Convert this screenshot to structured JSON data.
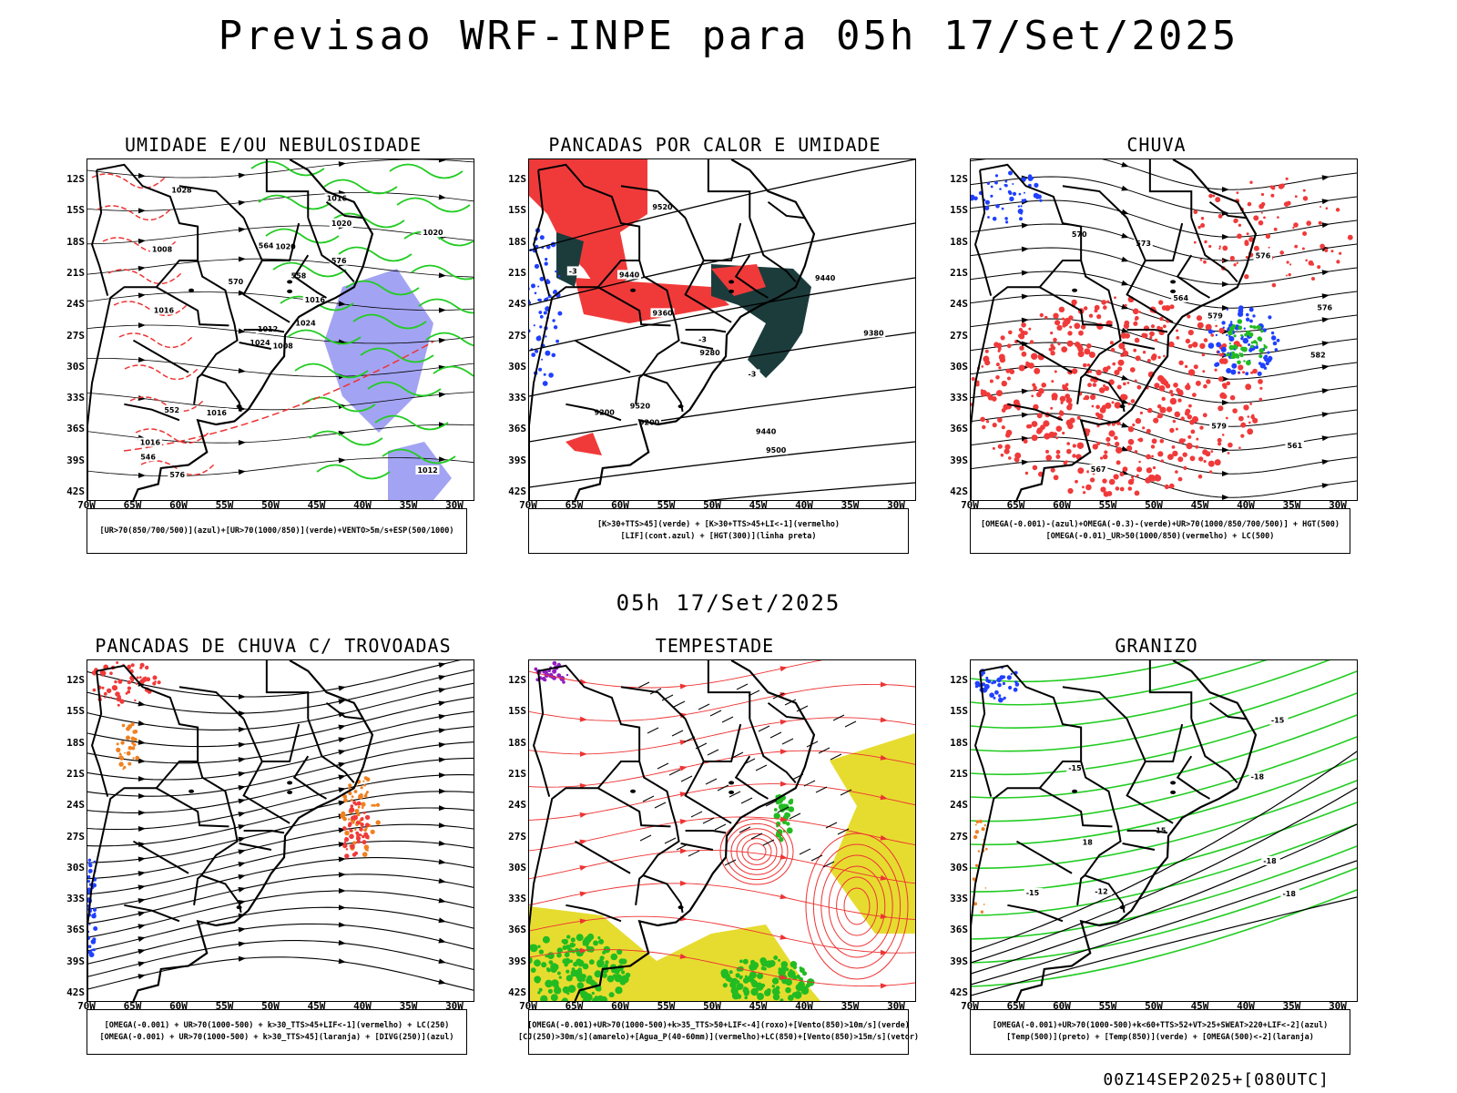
{
  "page": {
    "title": "Previsao WRF-INPE  para 05h 17/Set/2025",
    "mid_date": "05h 17/Set/2025",
    "footer": "00Z14SEP2025+[080UTC]"
  },
  "axes": {
    "lat_labels": [
      "12S",
      "15S",
      "18S",
      "21S",
      "24S",
      "27S",
      "30S",
      "33S",
      "36S",
      "39S",
      "42S"
    ],
    "lon_labels": [
      "70W",
      "65W",
      "60W",
      "55W",
      "50W",
      "45W",
      "40W",
      "35W",
      "30W"
    ]
  },
  "colors": {
    "blue_field": "#8c8cf0",
    "green_contour": "#22cc22",
    "red_contour": "#ee3333",
    "red_fill": "#f03a3a",
    "dark_teal": "#1c3c3c",
    "yellow_fill": "#e6dc30",
    "orange_fill": "#f08020",
    "blue_fill": "#2040ff",
    "purple_fill": "#9020c0",
    "green_fill": "#22bb22"
  },
  "panels": [
    {
      "id": "umidade",
      "title": "UMIDADE E/OU NEBULOSIDADE",
      "legend": [
        "[UR>70(850/700/500)](azul)+[UR>70(1000/850)](verde)+VENTO>5m/s+ESP(500/1000)"
      ],
      "contour_labels": [
        "1008",
        "1008",
        "1012",
        "1016",
        "1016",
        "1016",
        "1016",
        "1020",
        "1020",
        "1024",
        "1028",
        "1012",
        "1016",
        "1020",
        "1024",
        "576",
        "576",
        "564",
        "558",
        "552",
        "570",
        "546"
      ]
    },
    {
      "id": "pancadas_calor",
      "title": "PANCADAS POR CALOR E UMIDADE",
      "legend": [
        "[K>30+TTS>45](verde) + [K>30+TTS>45+LI<-1](vermelho)",
        "[LIF](cont.azul) + [HGT(300)](linha preta)"
      ],
      "contour_labels": [
        "9500",
        "9520",
        "9520",
        "9440",
        "9440",
        "9440",
        "9380",
        "9360",
        "9280",
        "9200",
        "9200",
        "-3",
        "-3",
        "-3"
      ]
    },
    {
      "id": "chuva",
      "title": "CHUVA",
      "legend": [
        "[OMEGA(-0.001)-(azul)+OMEGA(-0.3)-(verde)+UR>70(1000/850/700/500)] + HGT(500)",
        "[OMEGA(-0.01)_UR>50(1000/850)(vermelho) + LC(500)"
      ],
      "contour_labels": [
        "582",
        "579",
        "576",
        "573",
        "570",
        "567",
        "564",
        "561",
        "576",
        "579"
      ]
    },
    {
      "id": "pancadas_trovoadas",
      "title": "PANCADAS DE CHUVA C/ TROVOADAS",
      "legend": [
        "[OMEGA(-0.001) + UR>70(1000-500) + k>30_TTS>45+LIF<-1](vermelho) + LC(250)",
        "[OMEGA(-0.001) + UR>70(1000-500) + k>30_TTS>45](laranja) + [DIVG(250)](azul)"
      ],
      "contour_labels": []
    },
    {
      "id": "tempestade",
      "title": "TEMPESTADE",
      "legend": [
        "[OMEGA(-0.001)+UR>70(1000-500)+k>35_TTS>50+LIF<-4](roxo)+[Vento(850)>10m/s](verde)",
        "[CJ(250)>30m/s](amarelo)+[Agua_P(40-60mm)](vermelho)+LC(850)+[Vento(850)>15m/s](vetor)"
      ],
      "contour_labels": []
    },
    {
      "id": "granizo",
      "title": "GRANIZO",
      "legend": [
        "[OMEGA(-0.001)+UR>70(1000-500)+k<60+TTS>52+VT>25+SWEAT>220+LIF<-2](azul)",
        "[Temp(500)](preto) + [Temp(850)](verde) + [OMEGA(500)<-2](laranja)"
      ],
      "contour_labels": [
        "-18",
        "-15",
        "-15",
        "-18",
        "-18",
        "-12",
        "-15",
        "15",
        "18"
      ]
    }
  ]
}
